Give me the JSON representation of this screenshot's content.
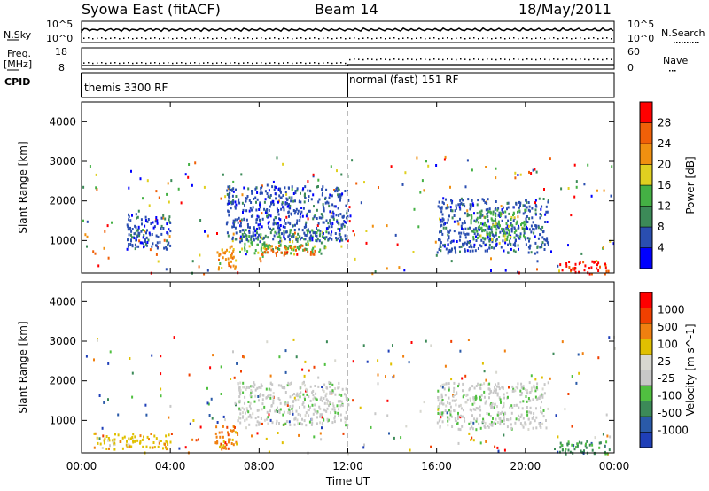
{
  "header": {
    "station": "Syowa East (fitACF)",
    "beam": "Beam 14",
    "date": "18/May/2011"
  },
  "top_panels": {
    "nsky_label": "N.Sky",
    "nsearch_label": "N.Search",
    "nsky_ticks": [
      "10^5",
      "10^0"
    ],
    "nsearch_ticks": [
      "10^5",
      "10^0"
    ],
    "freq_label": "Freq.",
    "freq_unit": "[MHz]",
    "freq_ticks": [
      "18",
      "8"
    ],
    "nave_label": "Nave",
    "nave_ticks": [
      "60",
      "0"
    ],
    "cpid_label": "CPID",
    "cpid_modes": [
      "themis 3300 RF",
      "normal (fast) 151 RF"
    ]
  },
  "colors": {
    "power": [
      "#0000ff",
      "#2a4eb0",
      "#3c8a58",
      "#44b044",
      "#e0d020",
      "#f09010",
      "#f06008",
      "#ff0000"
    ],
    "velocity": [
      "#1f3fb8",
      "#2a5aa8",
      "#3c8a58",
      "#50c040",
      "#c8c8c8",
      "#d8d8d0",
      "#e0c000",
      "#f08010",
      "#f04000",
      "#ff0000"
    ]
  },
  "chart_data": [
    {
      "type": "heatmap",
      "title": "Power",
      "ylabel": "Slant Range [km]",
      "xlabel": "",
      "xlim": [
        "00:00",
        "00:00"
      ],
      "ylim": [
        180,
        4500
      ],
      "yticks": [
        "4000",
        "3000",
        "2000",
        "1000"
      ],
      "colorbar_label": "Power [dB]",
      "colorbar_ticks": [
        "28",
        "24",
        "20",
        "16",
        "12",
        "8",
        "4"
      ],
      "regions": [
        {
          "t0": 6.0,
          "t1": 7.0,
          "r0": 300,
          "r1": 900,
          "level": 5
        },
        {
          "t0": 7.0,
          "t1": 11.0,
          "r0": 700,
          "r1": 1300,
          "level": 3
        },
        {
          "t0": 8.0,
          "t1": 10.5,
          "r0": 650,
          "r1": 900,
          "level": 6
        },
        {
          "t0": 6.5,
          "t1": 12.0,
          "r0": 1000,
          "r1": 2400,
          "level": 1
        },
        {
          "t0": 16.0,
          "t1": 21.0,
          "r0": 700,
          "r1": 2100,
          "level": 1
        },
        {
          "t0": 17.5,
          "t1": 20.0,
          "r0": 1000,
          "r1": 1800,
          "level": 3
        },
        {
          "t0": 21.5,
          "t1": 23.8,
          "r0": 180,
          "r1": 500,
          "level": 7
        },
        {
          "t0": 2.0,
          "t1": 4.0,
          "r0": 800,
          "r1": 1700,
          "level": 1
        }
      ]
    },
    {
      "type": "heatmap",
      "title": "Velocity",
      "ylabel": "Slant Range [km]",
      "xlabel": "Time UT",
      "xticks": [
        "00:00",
        "04:00",
        "08:00",
        "12:00",
        "16:00",
        "20:00",
        "00:00"
      ],
      "ylim": [
        180,
        4500
      ],
      "yticks": [
        "4000",
        "3000",
        "2000",
        "1000"
      ],
      "colorbar_label": "Velocity [m s^-1]",
      "colorbar_ticks": [
        "1000",
        "500",
        "100",
        "25",
        "-25",
        "-100",
        "-500",
        "-1000"
      ],
      "regions": [
        {
          "t0": 6.0,
          "t1": 7.0,
          "r0": 300,
          "r1": 900,
          "level": 7
        },
        {
          "t0": 7.0,
          "t1": 12.0,
          "r0": 900,
          "r1": 2000,
          "level": 4
        },
        {
          "t0": 16.0,
          "t1": 21.0,
          "r0": 800,
          "r1": 2000,
          "level": 4
        },
        {
          "t0": 21.5,
          "t1": 23.8,
          "r0": 180,
          "r1": 500,
          "level": 2
        },
        {
          "t0": 0.5,
          "t1": 4.0,
          "r0": 300,
          "r1": 700,
          "level": 6
        }
      ]
    }
  ]
}
